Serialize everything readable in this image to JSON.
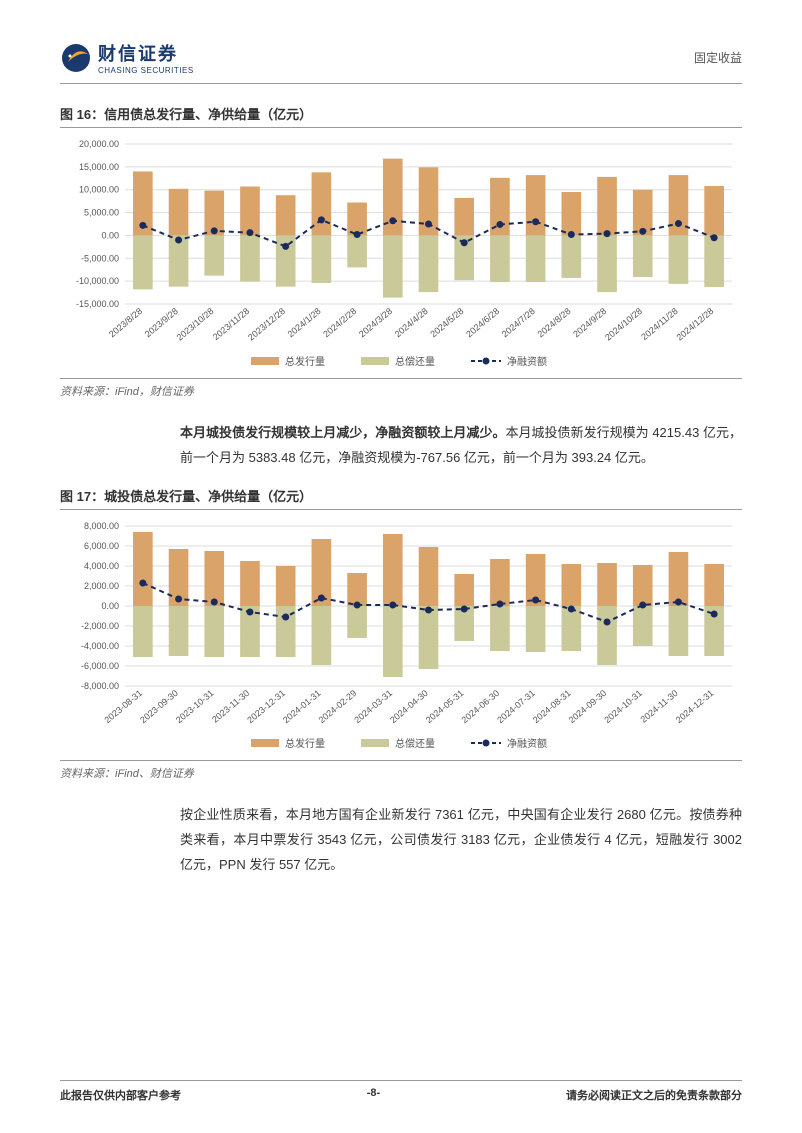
{
  "header": {
    "logo_cn": "财信证券",
    "logo_en": "CHASING SECURITIES",
    "right_text": "固定收益"
  },
  "figure16": {
    "title": "图 16：信用债总发行量、净供给量（亿元）",
    "type": "bar+line",
    "source": "资料来源：iFind，财信证券",
    "categories": [
      "2023/8/28",
      "2023/9/28",
      "2023/10/28",
      "2023/11/28",
      "2023/12/28",
      "2024/1/28",
      "2024/2/28",
      "2024/3/28",
      "2024/4/28",
      "2024/5/28",
      "2024/6/28",
      "2024/7/28",
      "2024/8/28",
      "2024/9/28",
      "2024/10/28",
      "2024/11/28",
      "2024/12/28"
    ],
    "issuance": [
      14000,
      10200,
      9800,
      10700,
      8800,
      13800,
      7200,
      16800,
      14900,
      8200,
      12600,
      13200,
      9500,
      12800,
      10000,
      13200,
      10800
    ],
    "repayment": [
      -11800,
      -11200,
      -8800,
      -10100,
      -11200,
      -10400,
      -7000,
      -13600,
      -12400,
      -9800,
      -10200,
      -10200,
      -9300,
      -12400,
      -9100,
      -10600,
      -11300
    ],
    "net": [
      2200,
      -1000,
      1000,
      600,
      -2400,
      3400,
      200,
      3200,
      2500,
      -1600,
      2400,
      3000,
      200,
      400,
      900,
      2600,
      -500
    ],
    "ylim": [
      -15000,
      20000
    ],
    "yticks": [
      -15000,
      -10000,
      -5000,
      0,
      5000,
      10000,
      15000,
      20000
    ],
    "ytick_labels": [
      "-15,000.00",
      "-10,000.00",
      "-5,000.00",
      "0.00",
      "5,000.00",
      "10,000.00",
      "15,000.00",
      "20,000.00"
    ],
    "colors": {
      "issuance": "#d9a36a",
      "repayment": "#c9c99a",
      "net_line": "#1a2a5a",
      "grid": "#dddddd",
      "background": "#ffffff"
    },
    "legend": {
      "issuance": "总发行量",
      "repayment": "总偿还量",
      "net": "净融资额"
    }
  },
  "paragraph1": {
    "bold": "本月城投债发行规模较上月减少，净融资额较上月减少。",
    "rest": "本月城投债新发行规模为 4215.43 亿元，前一个月为 5383.48 亿元，净融资规模为-767.56 亿元，前一个月为 393.24 亿元。"
  },
  "figure17": {
    "title": "图 17：城投债总发行量、净供给量（亿元）",
    "type": "bar+line",
    "source": "资料来源：iFind、财信证券",
    "categories": [
      "2023-08-31",
      "2023-09-30",
      "2023-10-31",
      "2023-11-30",
      "2023-12-31",
      "2024-01-31",
      "2024-02-29",
      "2024-03-31",
      "2024-04-30",
      "2024-05-31",
      "2024-06-30",
      "2024-07-31",
      "2024-08-31",
      "2024-09-30",
      "2024-10-31",
      "2024-11-30",
      "2024-12-31"
    ],
    "issuance": [
      7400,
      5700,
      5500,
      4500,
      4000,
      6700,
      3300,
      7200,
      5900,
      3200,
      4700,
      5200,
      4200,
      4300,
      4100,
      5400,
      4200
    ],
    "repayment": [
      -5100,
      -5000,
      -5100,
      -5100,
      -5100,
      -5900,
      -3200,
      -7100,
      -6300,
      -3500,
      -4500,
      -4600,
      -4500,
      -5900,
      -4000,
      -5000,
      -5000
    ],
    "net": [
      2300,
      700,
      400,
      -600,
      -1100,
      800,
      100,
      100,
      -400,
      -300,
      200,
      600,
      -300,
      -1600,
      100,
      400,
      -800
    ],
    "ylim": [
      -8000,
      8000
    ],
    "yticks": [
      -8000,
      -6000,
      -4000,
      -2000,
      0,
      2000,
      4000,
      6000,
      8000
    ],
    "ytick_labels": [
      "-8,000.00",
      "-6,000.00",
      "-4,000.00",
      "-2,000.00",
      "0.00",
      "2,000.00",
      "4,000.00",
      "6,000.00",
      "8,000.00"
    ],
    "colors": {
      "issuance": "#d9a36a",
      "repayment": "#c9c99a",
      "net_line": "#1a2a5a",
      "grid": "#dddddd",
      "background": "#ffffff"
    },
    "legend": {
      "issuance": "总发行量",
      "repayment": "总偿还量",
      "net": "净融资额"
    }
  },
  "paragraph2": {
    "text": "按企业性质来看，本月地方国有企业新发行 7361 亿元，中央国有企业发行 2680 亿元。按债券种类来看，本月中票发行 3543 亿元，公司债发行 3183 亿元，企业债发行 4 亿元，短融发行 3002 亿元，PPN 发行 557 亿元。"
  },
  "footer": {
    "left": "此报告仅供内部客户参考",
    "center": "-8-",
    "right": "请务必阅读正文之后的免责条款部分"
  }
}
